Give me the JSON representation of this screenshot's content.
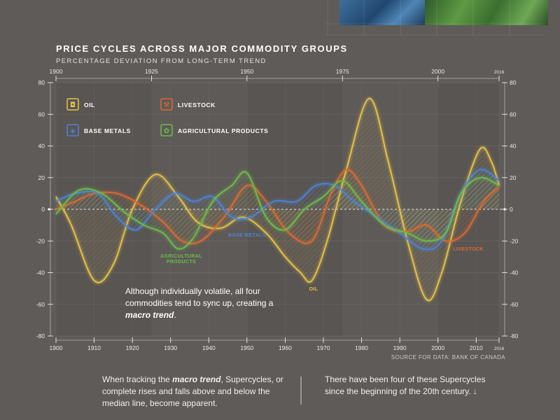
{
  "header": {
    "title": "PRICE CYCLES ACROSS MAJOR COMMODITY GROUPS",
    "subtitle": "PERCENTAGE DEVIATION FROM LONG-TERM TREND"
  },
  "annotation": {
    "prefix": "Although individually volatile, all four commodities tend to sync up, creating a ",
    "emph": "macro trend",
    "suffix": "."
  },
  "source": "SOURCE FOR DATA: BANK OF CANADA",
  "footer": {
    "left_prefix": "When tracking the ",
    "left_emph": "macro trend",
    "left_suffix": ", Supercycles, or complete rises and falls above and below the median line, become apparent.",
    "right": "There have been four of these Supercycles since the beginning of the 20th century. ↓"
  },
  "colors": {
    "background": "#5f5b58",
    "oil": "#e8c445",
    "livestock": "#e0692f",
    "base_metals": "#4a84d8",
    "agricultural": "#6cbd48",
    "axis": "#ffffff"
  },
  "chart_data": {
    "type": "line",
    "title": "PRICE CYCLES ACROSS MAJOR COMMODITY GROUPS",
    "subtitle": "PERCENTAGE DEVIATION FROM LONG-TERM TREND",
    "xlim": [
      1900,
      2016
    ],
    "ylim": [
      -80,
      80
    ],
    "x_ticks_top": [
      "1900",
      "1925",
      "1950",
      "1975",
      "2000",
      "2016"
    ],
    "x_ticks_bottom": [
      "1900",
      "1910",
      "1920",
      "1930",
      "1940",
      "1950",
      "1960",
      "1970",
      "1980",
      "1990",
      "2000",
      "2010",
      "2016"
    ],
    "y_ticks": [
      "80",
      "60",
      "40",
      "20",
      "0",
      "-20",
      "-40",
      "-60",
      "-80"
    ],
    "legend": [
      {
        "label": "OIL",
        "icon": "oil-barrel-icon"
      },
      {
        "label": "LIVESTOCK",
        "icon": "livestock-icon"
      },
      {
        "label": "BASE METALS",
        "icon": "base-metals-icon"
      },
      {
        "label": "AGRICULTURAL PRODUCTS",
        "icon": "agriculture-icon"
      }
    ],
    "series_labels": [
      "BASE METALS",
      "AGRICULTURAL PRODUCTS",
      "OIL",
      "LIVESTOCK"
    ],
    "series": [
      {
        "name": "OIL",
        "x": [
          1900,
          1904,
          1910,
          1915,
          1920,
          1926,
          1932,
          1937,
          1943,
          1949,
          1955,
          1960,
          1964,
          1967,
          1971,
          1976,
          1982,
          1987,
          1992,
          1997,
          2001,
          2006,
          2011,
          2014,
          2016
        ],
        "y": [
          8,
          -10,
          -45,
          -35,
          0,
          22,
          8,
          -8,
          -12,
          -5,
          -15,
          -30,
          -40,
          -45,
          -20,
          25,
          70,
          30,
          -20,
          -57,
          -40,
          5,
          38,
          30,
          15
        ]
      },
      {
        "name": "LIVESTOCK",
        "x": [
          1900,
          1905,
          1910,
          1916,
          1922,
          1928,
          1933,
          1938,
          1944,
          1950,
          1955,
          1961,
          1967,
          1972,
          1976,
          1980,
          1986,
          1992,
          1997,
          2002,
          2007,
          2012,
          2016
        ],
        "y": [
          0,
          5,
          10,
          10,
          3,
          -8,
          -20,
          -20,
          -5,
          15,
          5,
          -15,
          -20,
          10,
          25,
          15,
          -10,
          -14,
          -10,
          -20,
          -15,
          5,
          14
        ]
      },
      {
        "name": "BASE METALS",
        "x": [
          1900,
          1905,
          1911,
          1916,
          1921,
          1926,
          1931,
          1936,
          1941,
          1946,
          1951,
          1957,
          1963,
          1968,
          1973,
          1978,
          1984,
          1990,
          1996,
          2001,
          2006,
          2011,
          2016
        ],
        "y": [
          5,
          10,
          10,
          -5,
          -13,
          0,
          10,
          5,
          8,
          -5,
          -5,
          5,
          5,
          15,
          15,
          5,
          -5,
          -15,
          -25,
          -20,
          10,
          25,
          18
        ]
      },
      {
        "name": "AGRICULTURAL PRODUCTS",
        "x": [
          1900,
          1906,
          1912,
          1918,
          1923,
          1928,
          1932,
          1936,
          1941,
          1946,
          1950,
          1955,
          1960,
          1965,
          1970,
          1975,
          1980,
          1986,
          1992,
          1997,
          2002,
          2006,
          2011,
          2016
        ],
        "y": [
          -3,
          12,
          10,
          -2,
          -10,
          -15,
          -25,
          -18,
          5,
          15,
          23,
          -5,
          -13,
          0,
          8,
          18,
          5,
          -10,
          -15,
          -20,
          -15,
          10,
          20,
          15
        ]
      }
    ]
  }
}
